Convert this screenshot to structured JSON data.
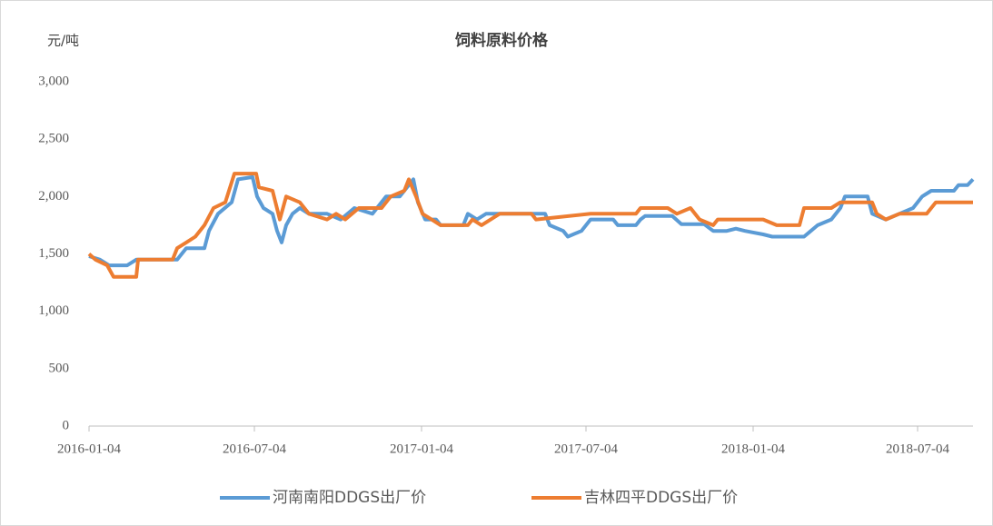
{
  "chart_data": {
    "type": "line",
    "title": "饲料原料价格",
    "y_label": "元/吨",
    "xlim": [
      "2016-01-04",
      "2018-09-03"
    ],
    "xticks": [
      "2016-01-04",
      "2016-07-04",
      "2017-01-04",
      "2017-07-04",
      "2018-01-04",
      "2018-07-04"
    ],
    "ylim": [
      0,
      3000
    ],
    "yticks": [
      0,
      500,
      {
        "value": 1000,
        "label": "1,000"
      },
      {
        "value": 1500,
        "label": "1,500"
      },
      {
        "value": 2000,
        "label": "2,000"
      },
      {
        "value": 2500,
        "label": "2,500"
      },
      {
        "value": 3000,
        "label": "3,000"
      }
    ],
    "grid": false,
    "legend": "bottom",
    "series": [
      {
        "name": "河南南阳DDGS出厂价",
        "color": "#5b9bd5",
        "x": [
          "2016-01-04",
          "2016-01-16",
          "2016-01-26",
          "2016-02-15",
          "2016-02-25",
          "2016-04-10",
          "2016-04-20",
          "2016-05-10",
          "2016-05-15",
          "2016-05-25",
          "2016-06-09",
          "2016-06-16",
          "2016-07-02",
          "2016-07-07",
          "2016-07-14",
          "2016-07-24",
          "2016-07-29",
          "2016-08-03",
          "2016-08-08",
          "2016-08-15",
          "2016-08-23",
          "2016-09-02",
          "2016-09-22",
          "2016-10-07",
          "2016-10-22",
          "2016-11-11",
          "2016-11-26",
          "2016-12-11",
          "2016-12-26",
          "2016-12-31",
          "2017-01-08",
          "2017-01-20",
          "2017-01-25",
          "2017-02-19",
          "2017-02-24",
          "2017-03-06",
          "2017-03-16",
          "2017-05-20",
          "2017-05-25",
          "2017-06-09",
          "2017-06-14",
          "2017-06-29",
          "2017-07-09",
          "2017-08-03",
          "2017-08-08",
          "2017-08-28",
          "2017-09-02",
          "2017-09-07",
          "2017-10-07",
          "2017-10-17",
          "2017-11-11",
          "2017-11-21",
          "2017-12-06",
          "2017-12-16",
          "2017-12-26",
          "2018-01-15",
          "2018-01-25",
          "2018-03-01",
          "2018-03-16",
          "2018-03-31",
          "2018-04-10",
          "2018-04-15",
          "2018-05-10",
          "2018-05-15",
          "2018-05-30",
          "2018-06-14",
          "2018-06-29",
          "2018-07-09",
          "2018-07-19",
          "2018-08-13",
          "2018-08-18",
          "2018-08-28",
          "2018-09-03"
        ],
        "values": [
          1480,
          1450,
          1400,
          1400,
          1450,
          1450,
          1550,
          1550,
          1700,
          1850,
          1950,
          2150,
          2170,
          2000,
          1900,
          1850,
          1700,
          1600,
          1750,
          1850,
          1900,
          1850,
          1850,
          1800,
          1900,
          1850,
          2000,
          2000,
          2150,
          1950,
          1800,
          1800,
          1750,
          1750,
          1850,
          1800,
          1850,
          1850,
          1750,
          1700,
          1650,
          1700,
          1800,
          1800,
          1750,
          1750,
          1800,
          1830,
          1830,
          1760,
          1760,
          1700,
          1700,
          1720,
          1700,
          1670,
          1650,
          1650,
          1750,
          1800,
          1900,
          2000,
          2000,
          1850,
          1800,
          1850,
          1900,
          2000,
          2050,
          2050,
          2100,
          2100,
          2150
        ]
      },
      {
        "name": "吉林四平DDGS出厂价",
        "color": "#ed7d31",
        "x": [
          "2016-01-04",
          "2016-01-11",
          "2016-01-24",
          "2016-01-31",
          "2016-02-25",
          "2016-02-27",
          "2016-04-05",
          "2016-04-10",
          "2016-04-20",
          "2016-04-30",
          "2016-05-10",
          "2016-05-20",
          "2016-06-02",
          "2016-06-12",
          "2016-07-06",
          "2016-07-09",
          "2016-07-24",
          "2016-08-01",
          "2016-08-08",
          "2016-08-23",
          "2016-09-02",
          "2016-09-22",
          "2016-10-02",
          "2016-10-12",
          "2016-10-27",
          "2016-11-21",
          "2016-12-01",
          "2016-12-16",
          "2016-12-21",
          "2016-12-29",
          "2017-01-05",
          "2017-01-15",
          "2017-01-25",
          "2017-02-24",
          "2017-03-01",
          "2017-03-11",
          "2017-03-31",
          "2017-05-05",
          "2017-05-10",
          "2017-07-09",
          "2017-08-28",
          "2017-09-02",
          "2017-10-02",
          "2017-10-12",
          "2017-10-27",
          "2017-11-06",
          "2017-11-21",
          "2017-11-26",
          "2018-01-15",
          "2018-01-30",
          "2018-02-24",
          "2018-03-01",
          "2018-03-31",
          "2018-04-10",
          "2018-05-15",
          "2018-05-20",
          "2018-05-30",
          "2018-06-14",
          "2018-07-14",
          "2018-07-24",
          "2018-09-03"
        ],
        "values": [
          1500,
          1450,
          1400,
          1300,
          1300,
          1450,
          1450,
          1550,
          1600,
          1650,
          1750,
          1900,
          1950,
          2200,
          2200,
          2080,
          2050,
          1800,
          2000,
          1950,
          1850,
          1800,
          1850,
          1800,
          1900,
          1900,
          2000,
          2050,
          2150,
          2000,
          1850,
          1800,
          1750,
          1750,
          1800,
          1750,
          1850,
          1850,
          1800,
          1850,
          1850,
          1900,
          1900,
          1850,
          1900,
          1800,
          1750,
          1800,
          1800,
          1750,
          1750,
          1900,
          1900,
          1950,
          1950,
          1850,
          1800,
          1850,
          1850,
          1950,
          1950
        ]
      }
    ]
  }
}
